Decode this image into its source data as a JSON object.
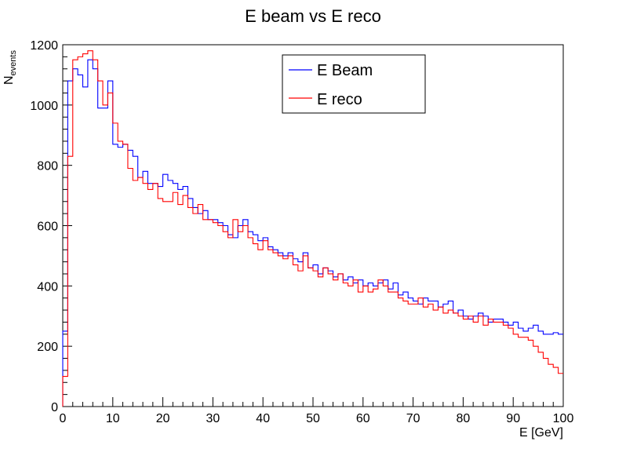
{
  "chart_data": {
    "type": "line",
    "subtype": "step-histogram",
    "title": "E beam vs E reco",
    "xlabel": "E [GeV]",
    "ylabel": {
      "main": "N",
      "subscript": "events"
    },
    "xlim": [
      0,
      100
    ],
    "ylim": [
      0,
      1200
    ],
    "x_ticks": [
      0,
      10,
      20,
      30,
      40,
      50,
      60,
      70,
      80,
      90,
      100
    ],
    "y_ticks": [
      0,
      200,
      400,
      600,
      800,
      1000,
      1200
    ],
    "grid": false,
    "legend_position": "top-center",
    "bin_edges": [
      0,
      1,
      2,
      3,
      4,
      5,
      6,
      7,
      8,
      9,
      10,
      11,
      12,
      13,
      14,
      15,
      16,
      17,
      18,
      19,
      20,
      21,
      22,
      23,
      24,
      25,
      26,
      27,
      28,
      29,
      30,
      31,
      32,
      33,
      34,
      35,
      36,
      37,
      38,
      39,
      40,
      41,
      42,
      43,
      44,
      45,
      46,
      47,
      48,
      49,
      50,
      51,
      52,
      53,
      54,
      55,
      56,
      57,
      58,
      59,
      60,
      61,
      62,
      63,
      64,
      65,
      66,
      67,
      68,
      69,
      70,
      71,
      72,
      73,
      74,
      75,
      76,
      77,
      78,
      79,
      80,
      81,
      82,
      83,
      84,
      85,
      86,
      87,
      88,
      89,
      90,
      91,
      92,
      93,
      94,
      95,
      96,
      97,
      98,
      99,
      100
    ],
    "series": [
      {
        "name": "E Beam",
        "color": "#0000ff",
        "values": [
          250,
          1080,
          1120,
          1100,
          1060,
          1150,
          1120,
          990,
          990,
          1080,
          870,
          860,
          870,
          850,
          830,
          760,
          780,
          740,
          740,
          730,
          770,
          750,
          740,
          720,
          730,
          690,
          660,
          640,
          650,
          620,
          620,
          610,
          600,
          570,
          560,
          600,
          620,
          580,
          570,
          550,
          560,
          530,
          520,
          510,
          500,
          510,
          490,
          480,
          510,
          460,
          470,
          440,
          460,
          450,
          430,
          440,
          420,
          430,
          410,
          420,
          400,
          410,
          400,
          410,
          420,
          390,
          410,
          370,
          380,
          360,
          350,
          340,
          360,
          350,
          350,
          330,
          340,
          350,
          310,
          320,
          300,
          290,
          300,
          310,
          300,
          280,
          290,
          290,
          280,
          270,
          280,
          260,
          250,
          260,
          270,
          250,
          240,
          240,
          245,
          240
        ]
      },
      {
        "name": "E reco",
        "color": "#ff0000",
        "values": [
          100,
          830,
          1150,
          1160,
          1170,
          1180,
          1150,
          1080,
          1000,
          1040,
          940,
          880,
          870,
          790,
          750,
          760,
          740,
          720,
          740,
          690,
          680,
          680,
          710,
          670,
          700,
          660,
          640,
          670,
          620,
          620,
          610,
          600,
          580,
          560,
          620,
          580,
          600,
          560,
          540,
          520,
          550,
          520,
          510,
          500,
          490,
          500,
          470,
          450,
          500,
          460,
          450,
          430,
          460,
          440,
          420,
          440,
          410,
          400,
          420,
          380,
          400,
          380,
          390,
          420,
          400,
          380,
          380,
          360,
          350,
          340,
          340,
          360,
          330,
          340,
          320,
          330,
          310,
          320,
          310,
          300,
          290,
          300,
          280,
          300,
          270,
          290,
          280,
          280,
          270,
          260,
          240,
          230,
          230,
          220,
          200,
          180,
          160,
          140,
          130,
          110
        ]
      }
    ]
  }
}
